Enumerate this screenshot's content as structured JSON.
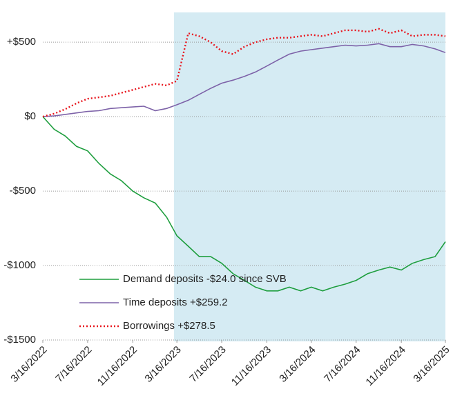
{
  "chart_data": {
    "type": "line",
    "x": [
      "2022-03-16",
      "2022-04-16",
      "2022-05-16",
      "2022-06-16",
      "2022-07-16",
      "2022-08-16",
      "2022-09-16",
      "2022-10-16",
      "2022-11-16",
      "2022-12-16",
      "2023-01-16",
      "2023-02-16",
      "2023-03-16",
      "2023-04-16",
      "2023-05-16",
      "2023-06-16",
      "2023-07-16",
      "2023-08-16",
      "2023-09-16",
      "2023-10-16",
      "2023-11-16",
      "2023-12-16",
      "2024-01-16",
      "2024-02-16",
      "2024-03-16",
      "2024-04-16",
      "2024-05-16",
      "2024-06-16",
      "2024-07-16",
      "2024-08-16",
      "2024-09-16",
      "2024-10-16",
      "2024-11-16",
      "2024-12-16",
      "2025-01-16",
      "2025-02-16",
      "2025-03-16"
    ],
    "series": [
      {
        "name": "Demand deposits -$24.0 since SVB",
        "color": "#1e9e3e",
        "line_style": "solid",
        "values": [
          0,
          -85,
          -130,
          -200,
          -230,
          -315,
          -385,
          -430,
          -500,
          -545,
          -580,
          -675,
          -800,
          -870,
          -940,
          -940,
          -985,
          -1055,
          -1100,
          -1145,
          -1170,
          -1170,
          -1145,
          -1170,
          -1145,
          -1170,
          -1145,
          -1125,
          -1100,
          -1055,
          -1030,
          -1010,
          -1030,
          -985,
          -960,
          -940,
          -840
        ]
      },
      {
        "name": "Time deposits +$259.2",
        "color": "#7d62a8",
        "line_style": "solid",
        "values": [
          0,
          5,
          15,
          25,
          35,
          40,
          55,
          60,
          65,
          70,
          40,
          55,
          80,
          110,
          150,
          190,
          225,
          245,
          270,
          300,
          340,
          380,
          420,
          440,
          450,
          460,
          470,
          480,
          475,
          480,
          490,
          470,
          470,
          485,
          475,
          455,
          430
        ]
      },
      {
        "name": "Borrowings +$278.5",
        "color": "#e8141c",
        "line_style": "dotted",
        "values": [
          0,
          20,
          50,
          90,
          120,
          130,
          140,
          160,
          180,
          200,
          220,
          210,
          240,
          560,
          540,
          500,
          440,
          420,
          470,
          500,
          520,
          530,
          530,
          540,
          550,
          540,
          560,
          580,
          580,
          570,
          590,
          560,
          580,
          540,
          550,
          550,
          540
        ]
      }
    ],
    "xlim": [
      "2022-03-16",
      "2025-03-16"
    ],
    "xticks": [
      {
        "value": "2022-03-16",
        "label": "3/16/2022"
      },
      {
        "value": "2022-07-16",
        "label": "7/16/2022"
      },
      {
        "value": "2022-11-16",
        "label": "11/16/2022"
      },
      {
        "value": "2023-03-16",
        "label": "3/16/2023"
      },
      {
        "value": "2023-07-16",
        "label": "7/16/2023"
      },
      {
        "value": "2023-11-16",
        "label": "11/16/2023"
      },
      {
        "value": "2024-03-16",
        "label": "3/16/2024"
      },
      {
        "value": "2024-07-16",
        "label": "7/16/2024"
      },
      {
        "value": "2024-11-16",
        "label": "11/16/2024"
      },
      {
        "value": "2025-03-16",
        "label": "3/16/2025"
      }
    ],
    "ylim": [
      -1500,
      700
    ],
    "yticks": [
      {
        "value": -1500,
        "label": "-$1500"
      },
      {
        "value": -1000,
        "label": "-$1000"
      },
      {
        "value": -500,
        "label": "-$500"
      },
      {
        "value": 0,
        "label": "$0"
      },
      {
        "value": 500,
        "label": "+$500"
      }
    ],
    "grid": true,
    "shaded_region": {
      "from": "2023-03-08",
      "to": "2025-03-16",
      "color": "#d5ebf3"
    },
    "legend": "bottom"
  }
}
